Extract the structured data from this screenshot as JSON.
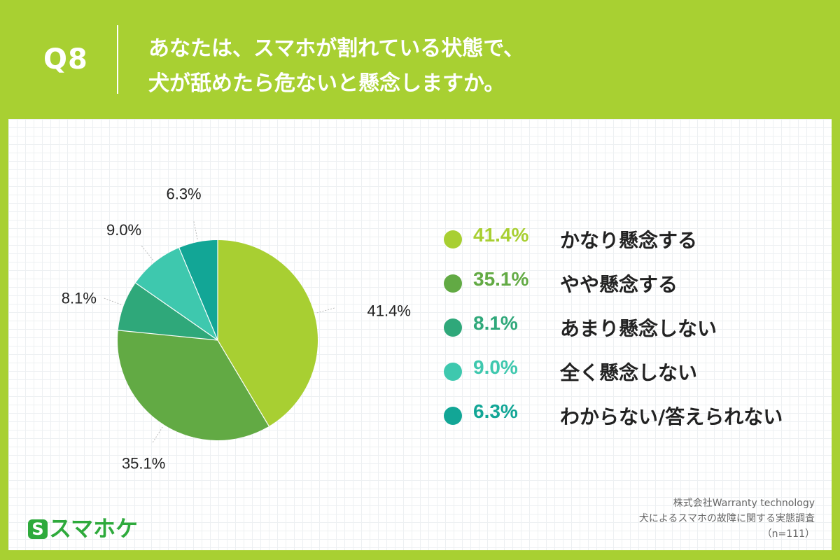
{
  "header": {
    "q_label": "Q8",
    "question_line1": "あなたは、スマホが割れている状態で、",
    "question_line2": "犬が舐めたら危ないと懸念しますか。"
  },
  "chart_data": {
    "type": "pie",
    "categories": [
      "かなり懸念する",
      "やや懸念する",
      "あまり懸念しない",
      "全く懸念しない",
      "わからない/答えられない"
    ],
    "values": [
      41.4,
      35.1,
      8.1,
      9.0,
      6.3
    ],
    "labels": [
      "41.4%",
      "35.1%",
      "8.1%",
      "9.0%",
      "6.3%"
    ],
    "colors": [
      "#a8cf32",
      "#62aa44",
      "#2fa87a",
      "#3ec8ae",
      "#12a696"
    ],
    "legend_placement": "right"
  },
  "footer": {
    "logo_mark": "S",
    "logo_text": "スマホケ",
    "source_line1": "株式会社Warranty technology",
    "source_line2": "犬によるスマホの故障に関する実態調査",
    "source_line3": "（n=111）"
  }
}
